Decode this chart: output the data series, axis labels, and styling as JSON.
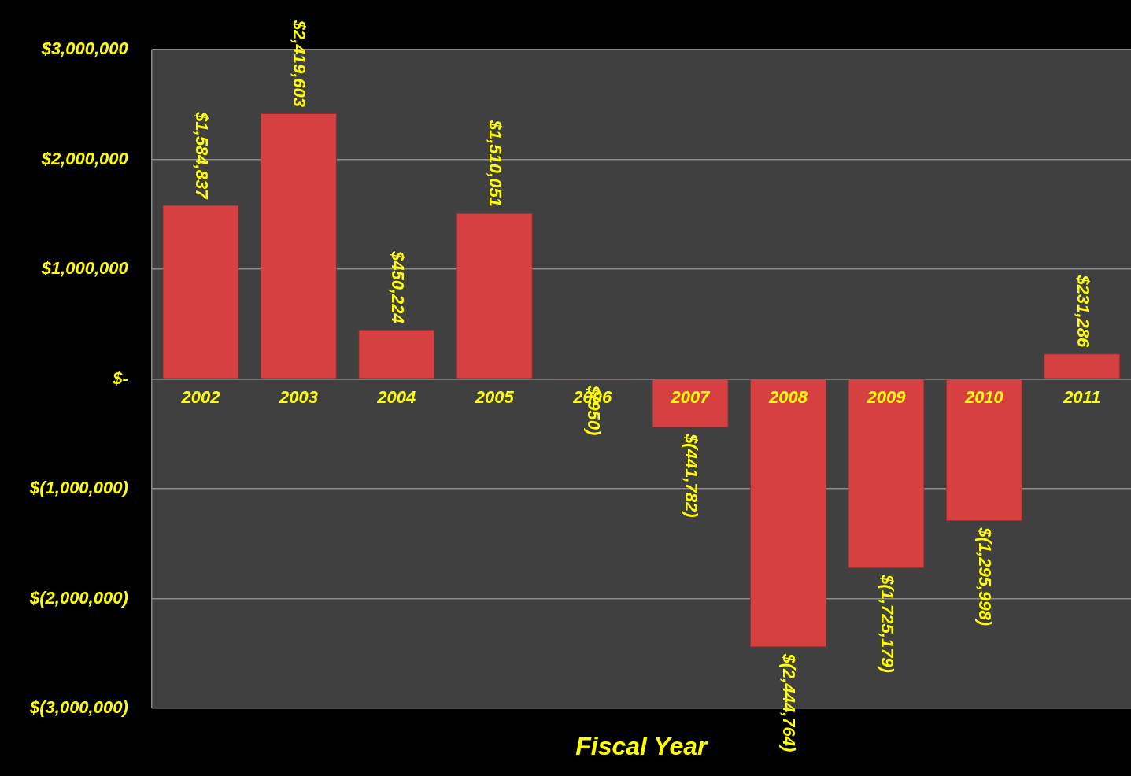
{
  "chart_data": {
    "type": "bar",
    "xlabel": "Fiscal Year",
    "categories": [
      "2002",
      "2003",
      "2004",
      "2005",
      "2006",
      "2007",
      "2008",
      "2009",
      "2010",
      "2011"
    ],
    "values": [
      1584837,
      2419603,
      450224,
      1510051,
      -950,
      -441782,
      -2444764,
      -1725179,
      -1295998,
      231286
    ],
    "value_labels": [
      "$1,584,837",
      "$2,419,603",
      "$450,224",
      "$1,510,051",
      "$(950)",
      "$(441,782)",
      "$(2,444,764)",
      "$(1,725,179)",
      "$(1,295,998)",
      "$231,286"
    ],
    "color": "#d64040",
    "ylim": [
      -3000000,
      3000000
    ],
    "yticks": [
      {
        "value": -3000000,
        "label": "$(3,000,000)"
      },
      {
        "value": -2000000,
        "label": "$(2,000,000)"
      },
      {
        "value": -1000000,
        "label": "$(1,000,000)"
      },
      {
        "value": 0,
        "label": "$-"
      },
      {
        "value": 1000000,
        "label": "$1,000,000"
      },
      {
        "value": 2000000,
        "label": "$2,000,000"
      },
      {
        "value": 3000000,
        "label": "$3,000,000"
      }
    ],
    "grid": "y",
    "legend": false
  }
}
